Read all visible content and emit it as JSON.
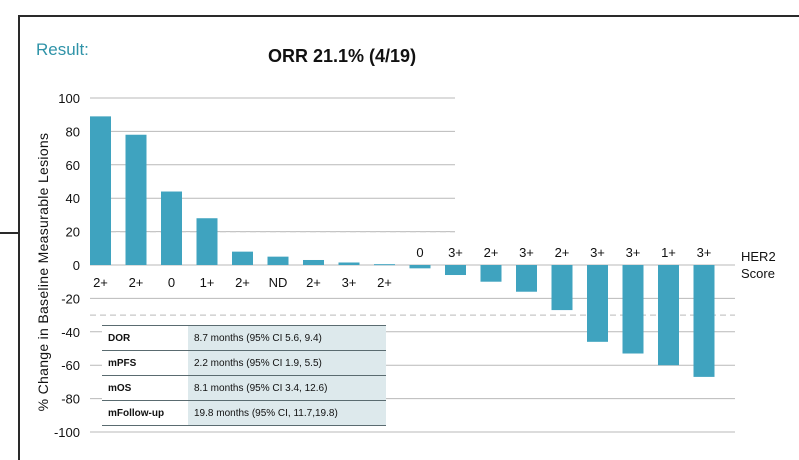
{
  "header": {
    "result_label": "Result:",
    "title": "ORR 21.1% (4/19)"
  },
  "chart_data": {
    "type": "bar",
    "title": "ORR 21.1% (4/19)",
    "xlabel": "",
    "ylabel": "% Change in Baseline Measurable Lesions",
    "ylim": [
      -100,
      100
    ],
    "yticks": [
      100,
      80,
      60,
      40,
      20,
      0,
      -20,
      -40,
      -60,
      -80,
      -100
    ],
    "grid": true,
    "bar_color": "#3fa3bf",
    "reference_lines": [
      20,
      -30
    ],
    "category_axis_label": [
      "HER2",
      "Score"
    ],
    "categories": [
      "2+",
      "2+",
      "0",
      "1+",
      "2+",
      "ND",
      "2+",
      "3+",
      "2+",
      "0",
      "3+",
      "2+",
      "3+",
      "2+",
      "3+",
      "3+",
      "1+",
      "3+"
    ],
    "values": [
      89,
      78,
      44,
      28,
      8,
      5,
      3,
      1.5,
      0.5,
      -2,
      -6,
      -10,
      -16,
      -27,
      -46,
      -53,
      -60,
      -67
    ]
  },
  "summary_table": {
    "rows": [
      {
        "label": "DOR",
        "value": "8.7 months (95% CI 5.6, 9.4)"
      },
      {
        "label": "mPFS",
        "value": "2.2 months (95% CI 1.9, 5.5)"
      },
      {
        "label": "mOS",
        "value": "8.1 months (95% CI 3.4, 12.6)"
      },
      {
        "label": "mFollow-up",
        "value": "19.8 months (95% CI, 11.7,19.8)"
      }
    ]
  }
}
